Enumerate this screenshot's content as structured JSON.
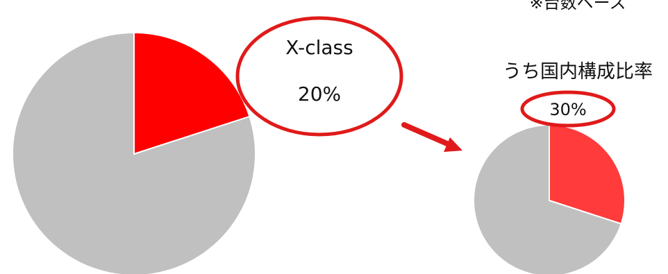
{
  "note": "※台数ベース",
  "callout_main": {
    "name": "X-class",
    "value": "20%"
  },
  "callout_sub": {
    "title": "うち国内構成比率",
    "value": "30%"
  },
  "colors": {
    "highlight": "#ff0000",
    "highlight_sub": "#ff3b3b",
    "rest": "#c0c0c0",
    "accent": "#e01a1a",
    "slice_border": "#ffffff"
  },
  "chart_data": [
    {
      "type": "pie",
      "slices": [
        {
          "label": "X-class",
          "value": 20
        },
        {
          "value": 80
        }
      ]
    },
    {
      "type": "pie",
      "title": "うち国内構成比率",
      "slices": [
        {
          "label": "国内",
          "value": 30
        },
        {
          "value": 70
        }
      ]
    }
  ]
}
